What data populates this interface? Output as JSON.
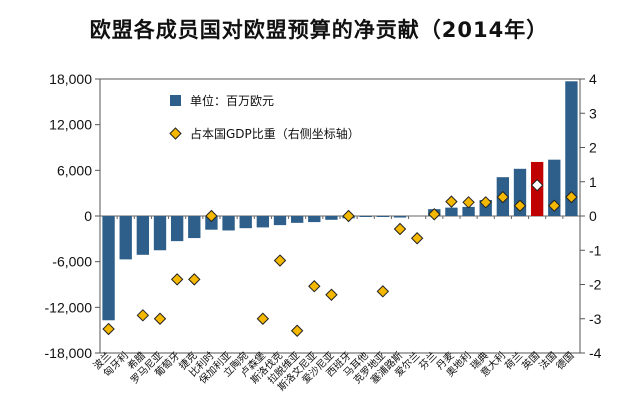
{
  "chart_data": {
    "type": "bar",
    "title": "欧盟各成员国对欧盟预算的净贡献（2014年）",
    "categories": [
      "波兰",
      "匈牙利",
      "希腊",
      "罗马尼亚",
      "葡萄牙",
      "捷克",
      "比利时",
      "保加利亚",
      "立陶宛",
      "卢森堡",
      "斯洛伐克",
      "拉脱维亚",
      "斯洛文尼亚",
      "爱沙尼亚",
      "西班牙",
      "马耳他",
      "克罗地亚",
      "塞浦路斯",
      "爱尔兰",
      "芬兰",
      "丹麦",
      "奥地利",
      "瑞典",
      "意大利",
      "荷兰",
      "英国",
      "法国",
      "德国"
    ],
    "highlight_category": "英国",
    "series": [
      {
        "name": "单位：百万欧元",
        "kind": "bar",
        "axis": "left",
        "color": "#2d5f8a",
        "highlight_color": "#c00000",
        "values": [
          -13700,
          -5700,
          -5100,
          -4500,
          -3300,
          -2900,
          -1800,
          -1900,
          -1600,
          -1500,
          -1200,
          -900,
          -800,
          -500,
          -300,
          -100,
          -100,
          -200,
          0,
          900,
          1100,
          1200,
          2100,
          5100,
          6200,
          7100,
          7400,
          17700
        ]
      },
      {
        "name": "占本国GDP比重（右侧坐标轴）",
        "kind": "marker",
        "axis": "right",
        "color": "#f5b800",
        "highlight_color": "#ffffff",
        "values": [
          -3.3,
          null,
          -2.9,
          -3.0,
          -1.85,
          -1.85,
          0.0,
          null,
          null,
          -3.0,
          -1.3,
          -3.35,
          -2.05,
          -2.3,
          0.0,
          null,
          -2.2,
          -0.38,
          -0.65,
          0.05,
          0.42,
          0.4,
          0.4,
          0.55,
          0.3,
          0.9,
          0.3,
          0.55
        ]
      }
    ],
    "left_axis": {
      "min": -18000,
      "max": 18000,
      "ticks": [
        18000,
        12000,
        6000,
        0,
        -6000,
        -12000,
        -18000
      ],
      "tick_labels": [
        "18,000",
        "12,000",
        "6,000",
        "0",
        "-6,000",
        "-12,000",
        "-18,000"
      ]
    },
    "right_axis": {
      "min": -4,
      "max": 4,
      "ticks": [
        4,
        3,
        2,
        1,
        0,
        -1,
        -2,
        -3,
        -4
      ],
      "tick_labels": [
        "4",
        "3",
        "2",
        "1",
        "0",
        "-1",
        "-2",
        "-3",
        "-4"
      ]
    },
    "legend": [
      {
        "label": "单位：百万欧元",
        "marker": "square"
      },
      {
        "label": "占本国GDP比重（右侧坐标轴）",
        "marker": "diamond"
      }
    ],
    "legend_position": "top-left"
  }
}
